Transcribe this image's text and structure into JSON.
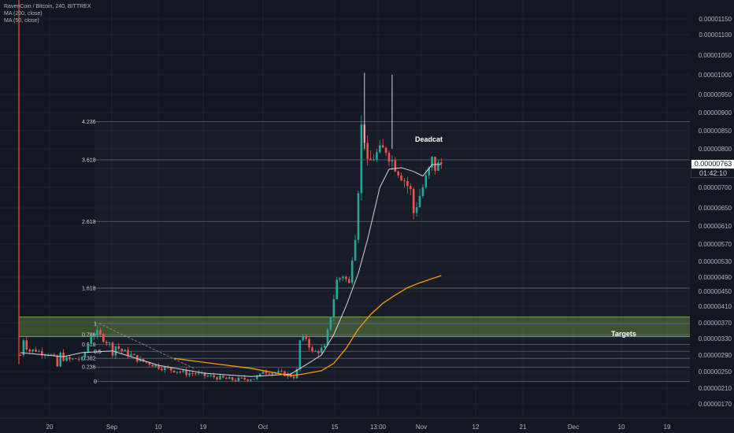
{
  "chart": {
    "title": "RavenCoin / Bitcoin, 240, BITTREX",
    "indicators": [
      "MA (200, close)",
      "MA (50, close)"
    ],
    "colors": {
      "background": "#131722",
      "up": "#26a69a",
      "down": "#ef5350",
      "ma200": "#ff9800",
      "ma50": "#d1d4dc",
      "zone": "#8bc34a",
      "vertical_line": "#f44336",
      "fib_line": "#787b86"
    },
    "last_price": "0.00000763",
    "countdown": "01:42:10",
    "annotations": {
      "deadcat": "Deadcat",
      "targets": "Targets"
    }
  },
  "chart_data": {
    "type": "candlestick",
    "title": "RavenCoin / Bitcoin, 240, BITTREX",
    "y_ticks": [
      "0.00001150",
      "0.00001100",
      "0.00001050",
      "0.00001000",
      "0.00000950",
      "0.00000900",
      "0.00000850",
      "0.00000800",
      "0.00000750",
      "0.00000700",
      "0.00000650",
      "0.00000610",
      "0.00000570",
      "0.00000530",
      "0.00000490",
      "0.00000450",
      "0.00000410",
      "0.00000370",
      "0.00000330",
      "0.00000290",
      "0.00000250",
      "0.00000210",
      "0.00000170"
    ],
    "x_ticks": [
      "20",
      "Sep",
      "10",
      "19",
      "Oct",
      "15",
      "13:00",
      "Nov",
      "12",
      "21",
      "Dec",
      "10",
      "19"
    ],
    "fib_levels": [
      {
        "label": "4.236",
        "value": 8.75e-06
      },
      {
        "label": "3.618",
        "value": 7.72e-06
      },
      {
        "label": "2.618",
        "value": 6.2e-06
      },
      {
        "label": "1.618",
        "value": 4.59e-06
      },
      {
        "label": "1",
        "value": 3.68e-06
      },
      {
        "label": "0.786",
        "value": 3.4e-06
      },
      {
        "label": "0.618",
        "value": 3.16e-06
      },
      {
        "label": "0.5",
        "value": 2.99e-06
      },
      {
        "label": "0.382",
        "value": 2.82e-06
      },
      {
        "label": "0.236",
        "value": 2.61e-06
      },
      {
        "label": "0",
        "value": 2.26e-06
      }
    ],
    "target_zone": [
      3.35e-06,
      3.84e-06
    ],
    "price_path": [
      [
        0,
        2.9e-06
      ],
      [
        1,
        3.3e-06
      ],
      [
        2,
        3.1e-06
      ],
      [
        3,
        3e-06
      ],
      [
        5,
        3.02e-06
      ],
      [
        7,
        2.96e-06
      ],
      [
        9,
        2.96e-06
      ],
      [
        11,
        2.82e-06
      ],
      [
        12,
        2.62e-06
      ],
      [
        13,
        2.92e-06
      ],
      [
        14,
        2.82e-06
      ],
      [
        16,
        2.78e-06
      ],
      [
        18,
        2.82e-06
      ],
      [
        20,
        2.78e-06
      ],
      [
        21,
        2.96e-06
      ],
      [
        23,
        3.4e-06
      ],
      [
        25,
        3.44e-06
      ],
      [
        27,
        3.3e-06
      ],
      [
        29,
        3.16e-06
      ],
      [
        30,
        2.96e-06
      ],
      [
        31,
        3.12e-06
      ],
      [
        33,
        3e-06
      ],
      [
        36,
        2.9e-06
      ],
      [
        39,
        2.76e-06
      ],
      [
        42,
        2.7e-06
      ],
      [
        45,
        2.62e-06
      ],
      [
        48,
        2.56e-06
      ],
      [
        51,
        2.52e-06
      ],
      [
        54,
        2.46e-06
      ],
      [
        57,
        2.46e-06
      ],
      [
        60,
        2.4e-06
      ],
      [
        64,
        2.36e-06
      ],
      [
        67,
        2.32e-06
      ],
      [
        70,
        2.3e-06
      ],
      [
        73,
        2.32e-06
      ],
      [
        76,
        2.34e-06
      ],
      [
        78,
        2.4e-06
      ],
      [
        79,
        2.54e-06
      ],
      [
        80,
        2.5e-06
      ],
      [
        83,
        2.48e-06
      ],
      [
        86,
        2.44e-06
      ],
      [
        88,
        2.4e-06
      ],
      [
        89,
        2.38e-06
      ],
      [
        90,
        2.52e-06
      ],
      [
        91,
        3.24e-06
      ],
      [
        93,
        3.32e-06
      ],
      [
        95,
        2.96e-06
      ],
      [
        97,
        3e-06
      ],
      [
        99,
        3.08e-06
      ],
      [
        100,
        3.46e-06
      ],
      [
        102,
        4.32e-06
      ],
      [
        103,
        4.8e-06
      ],
      [
        105,
        4.96e-06
      ],
      [
        107,
        4.7e-06
      ],
      [
        108,
        5.46e-06
      ],
      [
        109,
        5.94e-06
      ],
      [
        110,
        7e-06
      ],
      [
        111,
        8.6e-06
      ],
      [
        112,
        8.3e-06
      ],
      [
        113,
        7.56e-06
      ],
      [
        115,
        7.8e-06
      ],
      [
        117,
        7.92e-06
      ],
      [
        119,
        8e-06
      ],
      [
        121,
        7.7e-06
      ],
      [
        123,
        7.45e-06
      ],
      [
        125,
        7.2e-06
      ],
      [
        127,
        6.9e-06
      ],
      [
        128,
        6.4e-06
      ],
      [
        129,
        6.6e-06
      ],
      [
        131,
        7e-06
      ],
      [
        133,
        7.44e-06
      ],
      [
        134,
        7.7e-06
      ],
      [
        135,
        7.52e-06
      ],
      [
        137,
        7.62e-06
      ]
    ],
    "ma50_path": [
      [
        0,
        2.96e-06
      ],
      [
        14,
        2.86e-06
      ],
      [
        20,
        2.96e-06
      ],
      [
        30,
        3e-06
      ],
      [
        45,
        2.65e-06
      ],
      [
        60,
        2.46e-06
      ],
      [
        75,
        2.38e-06
      ],
      [
        88,
        2.44e-06
      ],
      [
        92,
        2.62e-06
      ],
      [
        98,
        2.9e-06
      ],
      [
        102,
        3.4e-06
      ],
      [
        106,
        4.1e-06
      ],
      [
        110,
        5e-06
      ],
      [
        113,
        5.8e-06
      ],
      [
        117,
        7e-06
      ],
      [
        120,
        7.48e-06
      ],
      [
        124,
        7.52e-06
      ],
      [
        128,
        7.42e-06
      ],
      [
        131,
        7.3e-06
      ],
      [
        134,
        7.6e-06
      ],
      [
        137,
        7.6e-06
      ]
    ],
    "ma200_path": [
      [
        50,
        2.82e-06
      ],
      [
        60,
        2.72e-06
      ],
      [
        75,
        2.58e-06
      ],
      [
        88,
        2.4e-06
      ],
      [
        92,
        2.44e-06
      ],
      [
        98,
        2.52e-06
      ],
      [
        102,
        2.7e-06
      ],
      [
        106,
        3.06e-06
      ],
      [
        110,
        3.54e-06
      ],
      [
        114,
        3.9e-06
      ],
      [
        118,
        4.18e-06
      ],
      [
        122,
        4.4e-06
      ],
      [
        126,
        4.6e-06
      ],
      [
        130,
        4.74e-06
      ],
      [
        137,
        4.94e-06
      ]
    ]
  }
}
